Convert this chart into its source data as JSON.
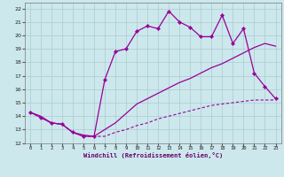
{
  "xlabel": "Windchill (Refroidissement éolien,°C)",
  "background_color": "#cce8ed",
  "grid_color": "#aacccc",
  "line_color": "#990099",
  "xlim": [
    -0.5,
    23.5
  ],
  "ylim": [
    12,
    22.4
  ],
  "xticks": [
    0,
    1,
    2,
    3,
    4,
    5,
    6,
    7,
    8,
    9,
    10,
    11,
    12,
    13,
    14,
    15,
    16,
    17,
    18,
    19,
    20,
    21,
    22,
    23
  ],
  "yticks": [
    12,
    13,
    14,
    15,
    16,
    17,
    18,
    19,
    20,
    21,
    22
  ],
  "line_straight_x": [
    0,
    1,
    2,
    3,
    4,
    5,
    6,
    7,
    8,
    9,
    10,
    11,
    12,
    13,
    14,
    15,
    16,
    17,
    18,
    19,
    20,
    21,
    22,
    23
  ],
  "line_straight_y": [
    14.3,
    14.0,
    13.5,
    13.4,
    12.8,
    12.6,
    12.5,
    13.0,
    13.5,
    14.2,
    14.9,
    15.3,
    15.7,
    16.1,
    16.5,
    16.8,
    17.2,
    17.6,
    17.9,
    18.3,
    18.7,
    19.1,
    19.4,
    19.2
  ],
  "line_dashed_x": [
    0,
    1,
    2,
    3,
    4,
    5,
    6,
    7,
    8,
    9,
    10,
    11,
    12,
    13,
    14,
    15,
    16,
    17,
    18,
    19,
    20,
    21,
    22,
    23
  ],
  "line_dashed_y": [
    14.3,
    13.9,
    13.5,
    13.4,
    12.8,
    12.5,
    12.5,
    12.5,
    12.8,
    13.0,
    13.3,
    13.5,
    13.8,
    14.0,
    14.2,
    14.4,
    14.6,
    14.8,
    14.9,
    15.0,
    15.1,
    15.2,
    15.2,
    15.2
  ],
  "line_jagged_x": [
    0,
    1,
    2,
    3,
    4,
    5,
    6,
    7,
    8,
    9,
    10,
    11,
    12,
    13,
    14,
    15,
    16,
    17,
    18,
    19,
    20,
    21,
    22,
    23
  ],
  "line_jagged_y": [
    14.3,
    13.9,
    13.5,
    13.4,
    12.8,
    12.5,
    12.5,
    16.7,
    18.8,
    19.0,
    20.3,
    20.7,
    20.5,
    21.8,
    21.0,
    20.6,
    19.9,
    19.9,
    21.5,
    19.4,
    20.5,
    17.2,
    16.2,
    15.3
  ]
}
